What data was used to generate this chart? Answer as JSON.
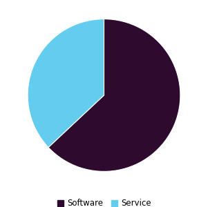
{
  "labels": [
    "Software",
    "Service"
  ],
  "values": [
    63,
    37
  ],
  "colors": [
    "#2d0a2e",
    "#64cdef"
  ],
  "legend_colors": [
    "#2d0a2e",
    "#64cdef"
  ],
  "background_color": "#ffffff",
  "startangle": 90,
  "legend_fontsize": 8.5
}
